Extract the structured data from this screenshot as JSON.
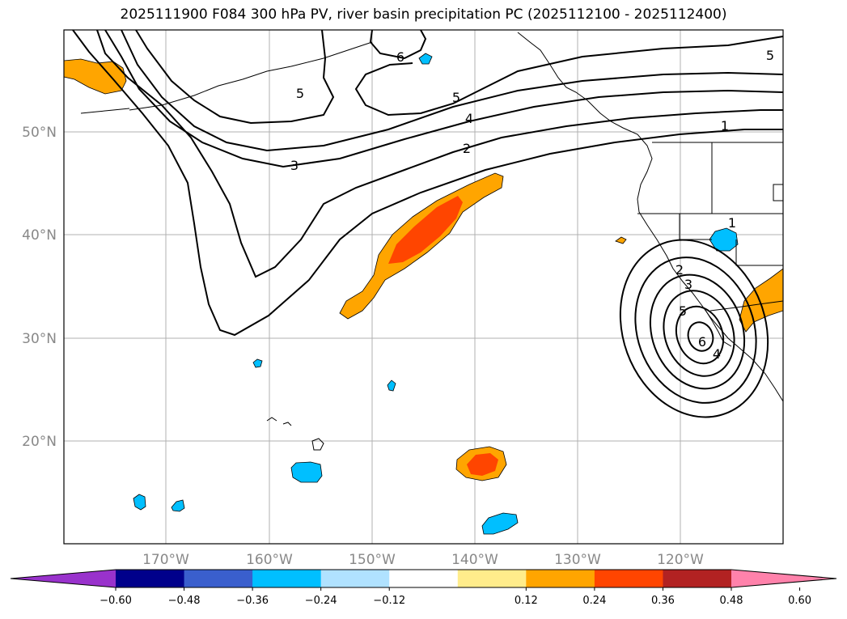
{
  "title": "2025111900 F084 300 hPa PV, river basin precipitation PC (2025112100 - 2025112400)",
  "axes": {
    "lat_labels": [
      "50°N",
      "40°N",
      "30°N",
      "20°N"
    ],
    "lon_labels": [
      "170°W",
      "160°W",
      "150°W",
      "140°W",
      "130°W",
      "120°W"
    ]
  },
  "pv_contour_labels": [
    "6",
    "5",
    "5",
    "5",
    "4",
    "3",
    "2",
    "1",
    "1",
    "2",
    "3",
    "5",
    "6",
    "4"
  ],
  "colorbar": {
    "colors": [
      "#9932CC",
      "#00008B",
      "#3A5FCD",
      "#00BFFF",
      "#B0E2FF",
      "#FFFFFF",
      "#FFEC8B",
      "#FFA500",
      "#FF4500",
      "#B22222",
      "#FF82AB"
    ],
    "tick_labels": [
      "−0.60",
      "−0.48",
      "−0.36",
      "−0.24",
      "−0.12",
      "0.12",
      "0.24",
      "0.36",
      "0.48",
      "0.60"
    ]
  },
  "colors": {
    "positive_low": "#FFA500",
    "positive_high": "#FF4500",
    "negative": "#00BFFF",
    "contour": "#000000",
    "grid": "#b0b0b0",
    "coast": "#000000"
  }
}
